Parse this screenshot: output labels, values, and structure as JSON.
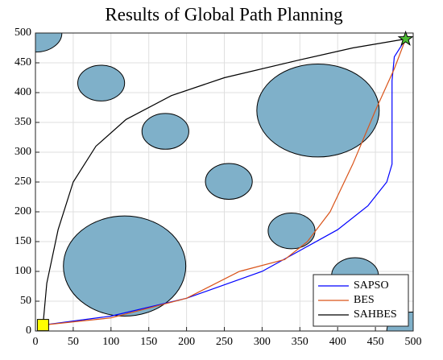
{
  "chart_data": {
    "type": "line",
    "title": "Results of Global Path Planning",
    "xlim": [
      0,
      500
    ],
    "ylim": [
      0,
      500
    ],
    "xticks": [
      0,
      50,
      100,
      150,
      200,
      250,
      300,
      350,
      400,
      450,
      500
    ],
    "yticks": [
      0,
      50,
      100,
      150,
      200,
      250,
      300,
      350,
      400,
      450,
      500
    ],
    "grid": true,
    "legend": "lower right",
    "obstacle_color": "#7fb0c9",
    "obstacles": [
      {
        "x": 0,
        "y": 500,
        "rx": 35,
        "ry": 32
      },
      {
        "x": 87,
        "y": 416,
        "rx": 31,
        "ry": 30
      },
      {
        "x": 172,
        "y": 335,
        "rx": 31,
        "ry": 30
      },
      {
        "x": 256,
        "y": 251,
        "rx": 31,
        "ry": 30
      },
      {
        "x": 374,
        "y": 370,
        "rx": 81,
        "ry": 78
      },
      {
        "x": 339,
        "y": 168,
        "rx": 31,
        "ry": 30
      },
      {
        "x": 118,
        "y": 109,
        "rx": 81,
        "ry": 84
      },
      {
        "x": 423,
        "y": 93,
        "rx": 31,
        "ry": 30
      },
      {
        "x": 500,
        "y": 0,
        "rx": 35,
        "ry": 32
      }
    ],
    "start": {
      "x": 10,
      "y": 10,
      "color": "#ffff00"
    },
    "goal": {
      "x": 490,
      "y": 490,
      "color": "#4dbd33"
    },
    "series": [
      {
        "name": "SAPSO",
        "color": "#0000ff",
        "x": [
          10,
          100,
          200,
          300,
          350,
          400,
          440,
          465,
          472,
          472,
          475,
          490
        ],
        "values": [
          10,
          25,
          55,
          100,
          135,
          170,
          210,
          250,
          280,
          420,
          460,
          490
        ]
      },
      {
        "name": "BES",
        "color": "#d95319",
        "x": [
          10,
          100,
          200,
          270,
          330,
          360,
          390,
          420,
          450,
          475,
          490
        ],
        "values": [
          10,
          22,
          55,
          100,
          120,
          150,
          200,
          280,
          370,
          440,
          490
        ]
      },
      {
        "name": "SAHBES",
        "color": "#000000",
        "x": [
          10,
          15,
          30,
          50,
          80,
          120,
          180,
          250,
          350,
          420,
          490
        ],
        "values": [
          10,
          80,
          170,
          250,
          310,
          355,
          395,
          425,
          455,
          475,
          490
        ]
      }
    ]
  }
}
